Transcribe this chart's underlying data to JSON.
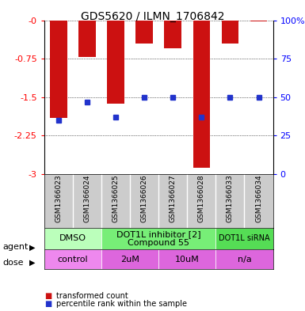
{
  "title": "GDS5620 / ILMN_1706842",
  "samples": [
    "GSM1366023",
    "GSM1366024",
    "GSM1366025",
    "GSM1366026",
    "GSM1366027",
    "GSM1366028",
    "GSM1366033",
    "GSM1366034"
  ],
  "bar_values": [
    -1.9,
    -0.72,
    -1.62,
    -0.45,
    -0.55,
    -2.87,
    -0.45,
    -0.02
  ],
  "dot_pct": [
    35,
    47,
    37,
    50,
    50,
    37,
    50,
    50
  ],
  "ylim_left": [
    -3,
    0
  ],
  "yticks_left": [
    0,
    -0.75,
    -1.5,
    -2.25,
    -3
  ],
  "ytick_labels_left": [
    "-0",
    "-0.75",
    "-1.5",
    "-2.25",
    "-3"
  ],
  "yticks_right_vals": [
    0,
    25,
    50,
    75,
    100
  ],
  "ytick_labels_right": [
    "0",
    "25",
    "50",
    "75",
    "100%"
  ],
  "bar_color": "#cc1111",
  "dot_color": "#2233cc",
  "agent_groups": [
    {
      "label": "DMSO",
      "start": 0,
      "end": 2,
      "color": "#bbffbb",
      "fontsize": 8
    },
    {
      "label": "DOT1L inhibitor [2]\nCompound 55",
      "start": 2,
      "end": 6,
      "color": "#77ee77",
      "fontsize": 8
    },
    {
      "label": "DOT1L siRNA",
      "start": 6,
      "end": 8,
      "color": "#55dd55",
      "fontsize": 7
    }
  ],
  "dose_groups": [
    {
      "label": "control",
      "start": 0,
      "end": 2,
      "color": "#ee88ee"
    },
    {
      "label": "2uM",
      "start": 2,
      "end": 4,
      "color": "#dd66dd"
    },
    {
      "label": "10uM",
      "start": 4,
      "end": 6,
      "color": "#dd66dd"
    },
    {
      "label": "n/a",
      "start": 6,
      "end": 8,
      "color": "#dd66dd"
    }
  ],
  "legend_items": [
    {
      "label": "transformed count",
      "color": "#cc1111"
    },
    {
      "label": "percentile rank within the sample",
      "color": "#2233cc"
    }
  ],
  "bg_color": "#ffffff",
  "sample_bg": "#cccccc"
}
